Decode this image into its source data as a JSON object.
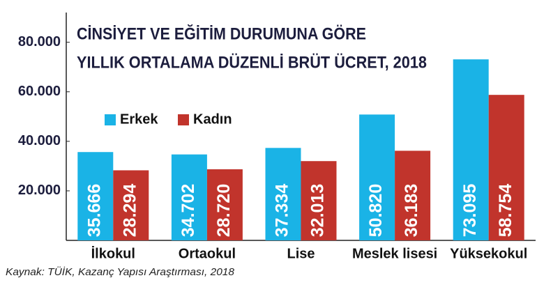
{
  "chart_data": {
    "type": "bar",
    "title": [
      "CİNSİYET VE EĞİTİM DURUMUNA GÖRE",
      "YILLIK ORTALAMA DÜZENLİ BRÜT ÜCRET, 2018"
    ],
    "source": "Kaynak: TÜİK, Kazanç Yapısı Araştırması, 2018",
    "categories": [
      "İlkokul",
      "Ortaokul",
      "Lise",
      "Meslek lisesi",
      "Yüksekokul"
    ],
    "series": [
      {
        "name": "Erkek",
        "color": "#1ab3e6",
        "values": [
          35666,
          34702,
          37334,
          50820,
          73095
        ],
        "value_labels": [
          "35.666",
          "34.702",
          "37.334",
          "50.820",
          "73.095"
        ]
      },
      {
        "name": "Kadın",
        "color": "#c1342c",
        "values": [
          28294,
          28720,
          32013,
          36183,
          58754
        ],
        "value_labels": [
          "28.294",
          "28.720",
          "32.013",
          "36.183",
          "58.754"
        ]
      }
    ],
    "ylim": [
      0,
      92000
    ],
    "yticks": [
      {
        "value": 20000,
        "label": "20.000"
      },
      {
        "value": 40000,
        "label": "40.000"
      },
      {
        "value": 60000,
        "label": "60.000"
      },
      {
        "value": 80000,
        "label": "80.000"
      }
    ],
    "grid": false
  }
}
